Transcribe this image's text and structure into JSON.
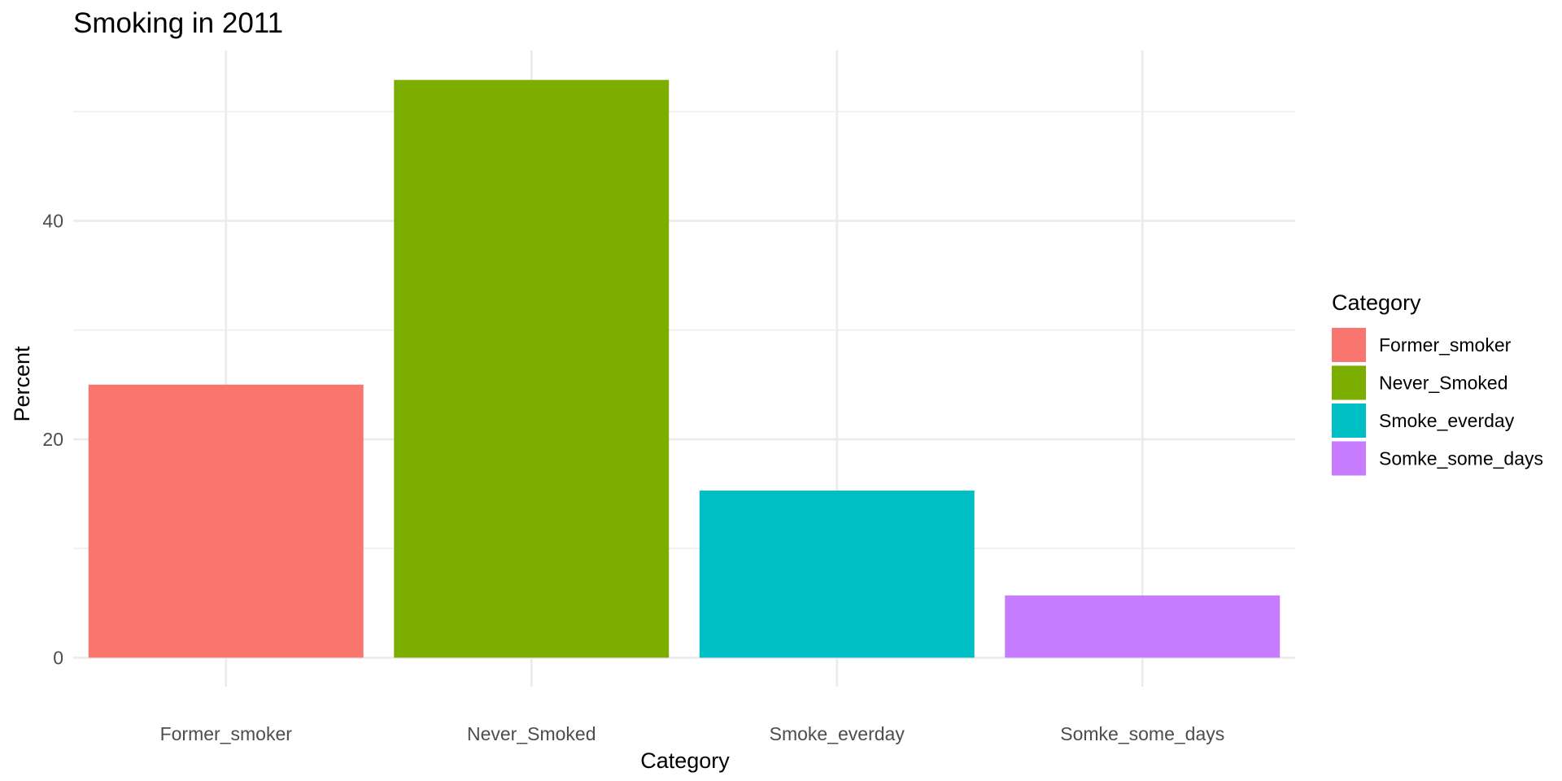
{
  "chart_data": {
    "type": "bar",
    "title": "Smoking in 2011",
    "xlabel": "Category",
    "ylabel": "Percent",
    "categories": [
      "Former_smoker",
      "Never_Smoked",
      "Smoke_everday",
      "Somke_some_days"
    ],
    "values": [
      25.0,
      52.9,
      15.3,
      5.7
    ],
    "colors": [
      "#F8766D",
      "#7CAE00",
      "#00BFC4",
      "#C77CFF"
    ],
    "yticks": [
      0,
      20,
      40
    ],
    "yticks_minor": [
      10,
      30,
      50
    ],
    "ylim": [
      -2.65,
      55.6
    ],
    "grid": true,
    "legend": {
      "title": "Category",
      "position": "right",
      "items": [
        "Former_smoker",
        "Never_Smoked",
        "Smoke_everday",
        "Somke_some_days"
      ]
    }
  }
}
